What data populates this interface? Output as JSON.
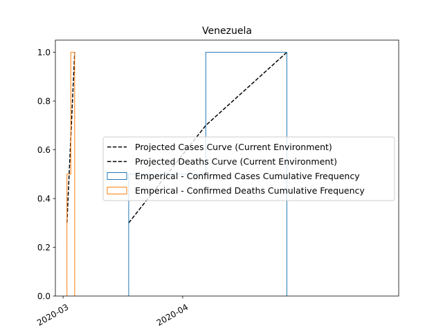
{
  "chart_data": {
    "type": "line",
    "title": "Venezuela",
    "xlabel": "",
    "ylabel": "",
    "x_axis": {
      "type": "date",
      "range": [
        "2020-02-28",
        "2020-05-27"
      ],
      "ticks": [
        {
          "date": "2020-03-01",
          "label": "2020-03"
        },
        {
          "date": "2020-04-01",
          "label": "2020-04"
        }
      ]
    },
    "y_axis": {
      "range": [
        0.0,
        1.05
      ],
      "ticks": [
        {
          "value": 0.0,
          "label": "0.0"
        },
        {
          "value": 0.2,
          "label": "0.2"
        },
        {
          "value": 0.4,
          "label": "0.4"
        },
        {
          "value": 0.6,
          "label": "0.6"
        },
        {
          "value": 0.8,
          "label": "0.8"
        },
        {
          "value": 1.0,
          "label": "1.0"
        }
      ]
    },
    "grid": false,
    "legend_position": "center-right",
    "series": [
      {
        "name": "Projected Cases Curve (Current Environment)",
        "kind": "line",
        "style": "dashed",
        "color": "#000000",
        "points": [
          {
            "x": "2020-03-18",
            "y": 0.3
          },
          {
            "x": "2020-04-07",
            "y": 0.7
          },
          {
            "x": "2020-04-28",
            "y": 1.0
          }
        ]
      },
      {
        "name": "Projected Deaths Curve (Current Environment)",
        "kind": "line",
        "style": "dashed",
        "color": "#000000",
        "points": [
          {
            "x": "2020-03-02",
            "y": 0.3
          },
          {
            "x": "2020-03-04",
            "y": 1.0
          }
        ]
      },
      {
        "name": "Emperical - Confirmed Cases Cumulative Frequency",
        "kind": "step",
        "color": "#1f77b4",
        "points": [
          {
            "x": "2020-03-18",
            "y": 0.0
          },
          {
            "x": "2020-03-18",
            "y": 0.5
          },
          {
            "x": "2020-04-07",
            "y": 0.5
          },
          {
            "x": "2020-04-07",
            "y": 1.0
          },
          {
            "x": "2020-04-28",
            "y": 1.0
          },
          {
            "x": "2020-04-28",
            "y": 0.0
          }
        ]
      },
      {
        "name": "Emperical - Confirmed Deaths Cumulative Frequency",
        "kind": "step",
        "color": "#ff7f0e",
        "points": [
          {
            "x": "2020-03-02",
            "y": 0.0
          },
          {
            "x": "2020-03-02",
            "y": 0.5
          },
          {
            "x": "2020-03-03",
            "y": 0.5
          },
          {
            "x": "2020-03-03",
            "y": 1.0
          },
          {
            "x": "2020-03-04",
            "y": 1.0
          },
          {
            "x": "2020-03-04",
            "y": 0.0
          }
        ]
      }
    ]
  }
}
